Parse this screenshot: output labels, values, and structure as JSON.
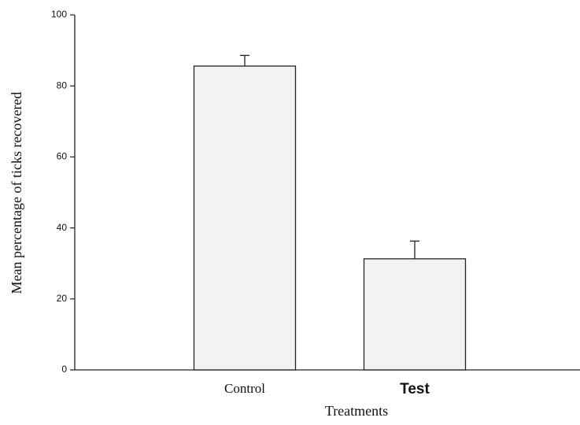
{
  "chart_data": {
    "type": "bar",
    "categories": [
      "Control",
      "Test"
    ],
    "values": [
      85.6,
      31.3
    ],
    "errors": [
      3,
      5
    ],
    "color": "#f2f2f2",
    "ylabel": "Mean percentage of ticks recovered",
    "xlabel": "Treatments",
    "ylim": [
      0,
      100
    ],
    "yticks": [
      0,
      20,
      40,
      60,
      80,
      100
    ]
  }
}
